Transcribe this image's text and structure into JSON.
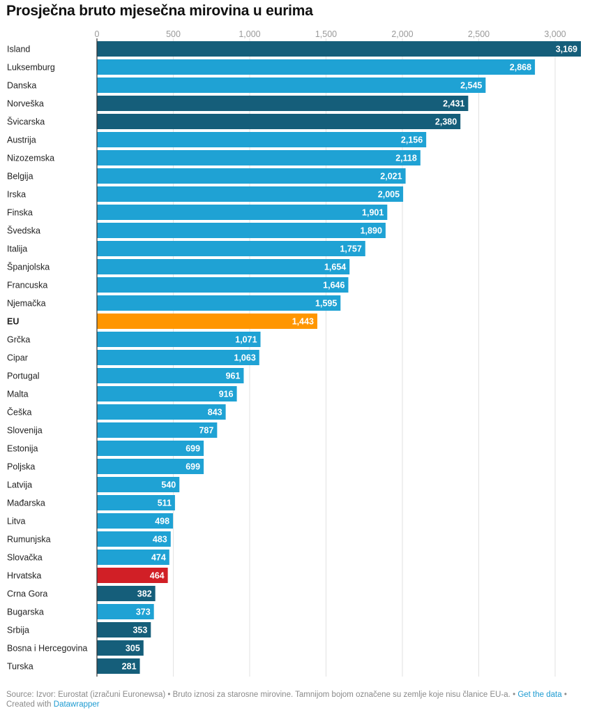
{
  "title": "Prosječna bruto mjesečna mirovina u eurima",
  "colors": {
    "eu_member": "#1fa2d4",
    "non_eu": "#155e7a",
    "eu_average": "#ff9600",
    "croatia": "#d11f26",
    "gridline": "#e2e2e2",
    "axis": "#333333"
  },
  "chart_data": {
    "type": "bar",
    "orientation": "horizontal",
    "xlim": [
      0,
      3169
    ],
    "ticks": [
      0,
      500,
      1000,
      1500,
      2000,
      2500,
      3000
    ],
    "tick_labels": [
      "0",
      "500",
      "1,000",
      "1,500",
      "2,000",
      "2,500",
      "3,000"
    ],
    "grid": true,
    "categories": [
      "Island",
      "Luksemburg",
      "Danska",
      "Norveška",
      "Švicarska",
      "Austrija",
      "Nizozemska",
      "Belgija",
      "Irska",
      "Finska",
      "Švedska",
      "Italija",
      "Španjolska",
      "Francuska",
      "Njemačka",
      "EU",
      "Grčka",
      "Cipar",
      "Portugal",
      "Malta",
      "Češka",
      "Slovenija",
      "Estonija",
      "Poljska",
      "Latvija",
      "Mađarska",
      "Litva",
      "Rumunjska",
      "Slovačka",
      "Hrvatska",
      "Crna Gora",
      "Bugarska",
      "Srbija",
      "Bosna i Hercegovina",
      "Turska"
    ],
    "values": [
      3169,
      2868,
      2545,
      2431,
      2380,
      2156,
      2118,
      2021,
      2005,
      1901,
      1890,
      1757,
      1654,
      1646,
      1595,
      1443,
      1071,
      1063,
      961,
      916,
      843,
      787,
      699,
      699,
      540,
      511,
      498,
      483,
      474,
      464,
      382,
      373,
      353,
      305,
      281
    ],
    "value_labels": [
      "3,169",
      "2,868",
      "2,545",
      "2,431",
      "2,380",
      "2,156",
      "2,118",
      "2,021",
      "2,005",
      "1,901",
      "1,890",
      "1,757",
      "1,654",
      "1,646",
      "1,595",
      "1,443",
      "1,071",
      "1,063",
      "961",
      "916",
      "843",
      "787",
      "699",
      "699",
      "540",
      "511",
      "498",
      "483",
      "474",
      "464",
      "382",
      "373",
      "353",
      "305",
      "281"
    ],
    "groups": [
      "non_eu",
      "eu_member",
      "eu_member",
      "non_eu",
      "non_eu",
      "eu_member",
      "eu_member",
      "eu_member",
      "eu_member",
      "eu_member",
      "eu_member",
      "eu_member",
      "eu_member",
      "eu_member",
      "eu_member",
      "eu_average",
      "eu_member",
      "eu_member",
      "eu_member",
      "eu_member",
      "eu_member",
      "eu_member",
      "eu_member",
      "eu_member",
      "eu_member",
      "eu_member",
      "eu_member",
      "eu_member",
      "eu_member",
      "croatia",
      "non_eu",
      "eu_member",
      "non_eu",
      "non_eu",
      "non_eu"
    ],
    "bold_categories": [
      "EU"
    ]
  },
  "footer": {
    "source": "Source: Izvor: Eurostat (izračuni Euronewsa) • Bruto iznosi za starosne mirovine. Tamnijom bojom označene su zemlje koje nisu članice EU-a. •",
    "get_data_link": "Get the data",
    "separator": "•",
    "created_with": "Created with",
    "datawrapper_link": "Datawrapper"
  }
}
